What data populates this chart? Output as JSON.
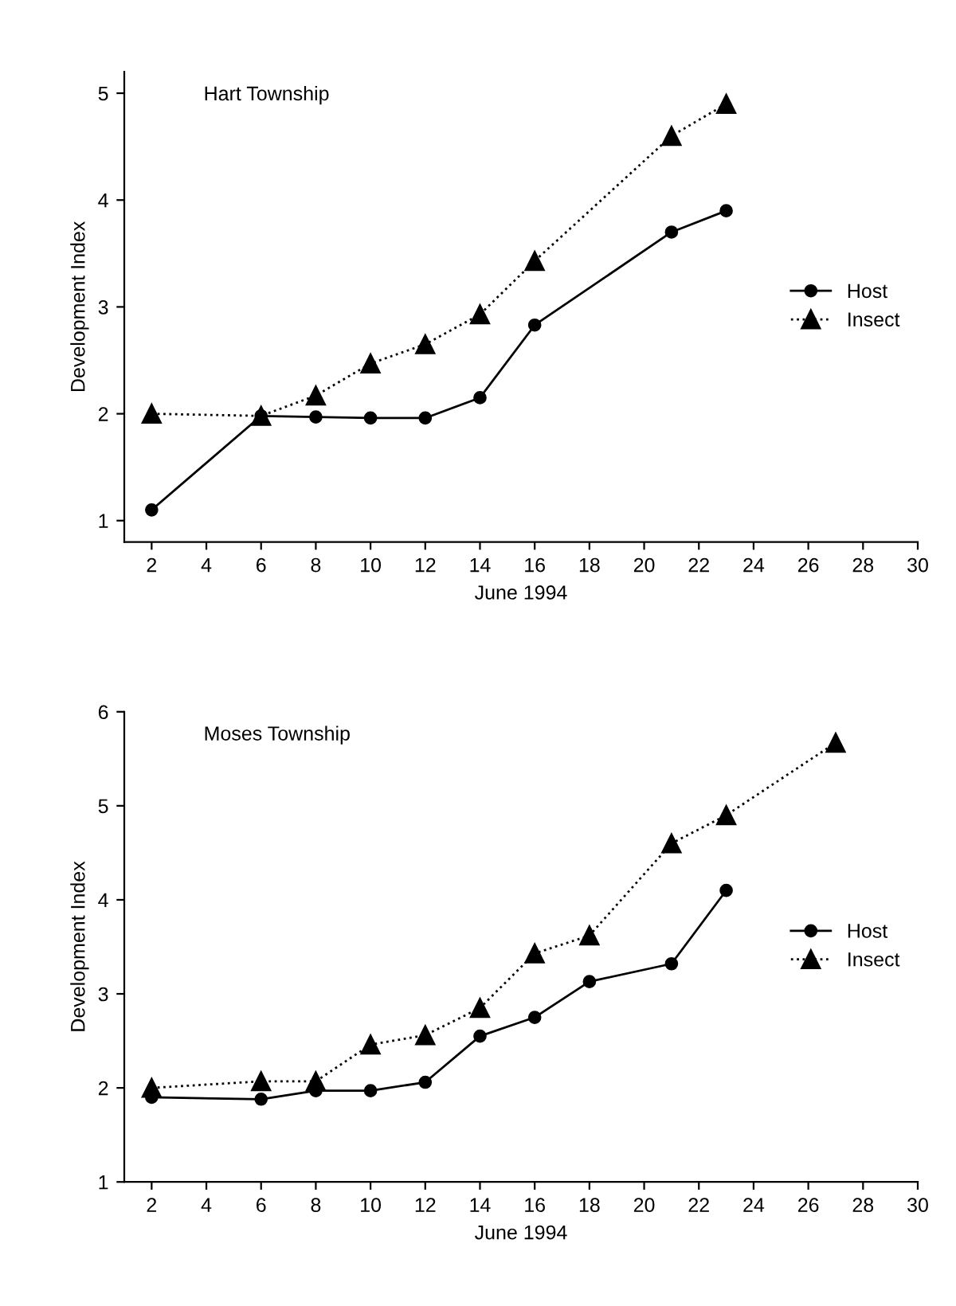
{
  "chart_data": [
    {
      "type": "line",
      "title": "Hart Township",
      "xlabel": "June 1994",
      "ylabel": "Development Index",
      "xlim": [
        1,
        30
      ],
      "xticks": [
        2,
        4,
        6,
        8,
        10,
        12,
        14,
        16,
        18,
        20,
        22,
        24,
        26,
        28,
        30
      ],
      "ylim": [
        0.8,
        5.2
      ],
      "yticks": [
        1,
        2,
        3,
        4,
        5
      ],
      "legend": "right",
      "grid": false,
      "series": [
        {
          "name": "Host",
          "color": "#000000",
          "marker": "circle",
          "line_style": "solid",
          "x": [
            2,
            6,
            8,
            10,
            12,
            14,
            16,
            21,
            23
          ],
          "values": [
            1.1,
            1.98,
            1.97,
            1.96,
            1.96,
            2.15,
            2.83,
            3.7,
            3.9
          ]
        },
        {
          "name": "Insect",
          "color": "#000000",
          "marker": "triangle",
          "line_style": "dotted",
          "x": [
            2,
            6,
            8,
            10,
            12,
            14,
            16,
            21,
            23
          ],
          "values": [
            2.0,
            1.98,
            2.17,
            2.47,
            2.65,
            2.93,
            3.43,
            4.6,
            4.9
          ]
        }
      ]
    },
    {
      "type": "line",
      "title": "Moses Township",
      "xlabel": "June 1994",
      "ylabel": "Development Index",
      "xlim": [
        1,
        30
      ],
      "xticks": [
        2,
        4,
        6,
        8,
        10,
        12,
        14,
        16,
        18,
        20,
        22,
        24,
        26,
        28,
        30
      ],
      "ylim": [
        1,
        6
      ],
      "yticks": [
        1,
        2,
        3,
        4,
        5,
        6
      ],
      "legend": "right",
      "grid": false,
      "series": [
        {
          "name": "Host",
          "color": "#000000",
          "marker": "circle",
          "line_style": "solid",
          "x": [
            2,
            6,
            8,
            10,
            12,
            14,
            16,
            18,
            21,
            23
          ],
          "values": [
            1.9,
            1.88,
            1.97,
            1.97,
            2.06,
            2.55,
            2.75,
            3.13,
            3.32,
            4.1
          ]
        },
        {
          "name": "Insect",
          "color": "#000000",
          "marker": "triangle",
          "line_style": "dotted",
          "x": [
            2,
            6,
            8,
            10,
            12,
            14,
            16,
            18,
            21,
            23,
            27
          ],
          "values": [
            2.0,
            2.07,
            2.07,
            2.46,
            2.56,
            2.85,
            3.43,
            3.62,
            4.6,
            4.9,
            5.67
          ]
        }
      ]
    }
  ]
}
